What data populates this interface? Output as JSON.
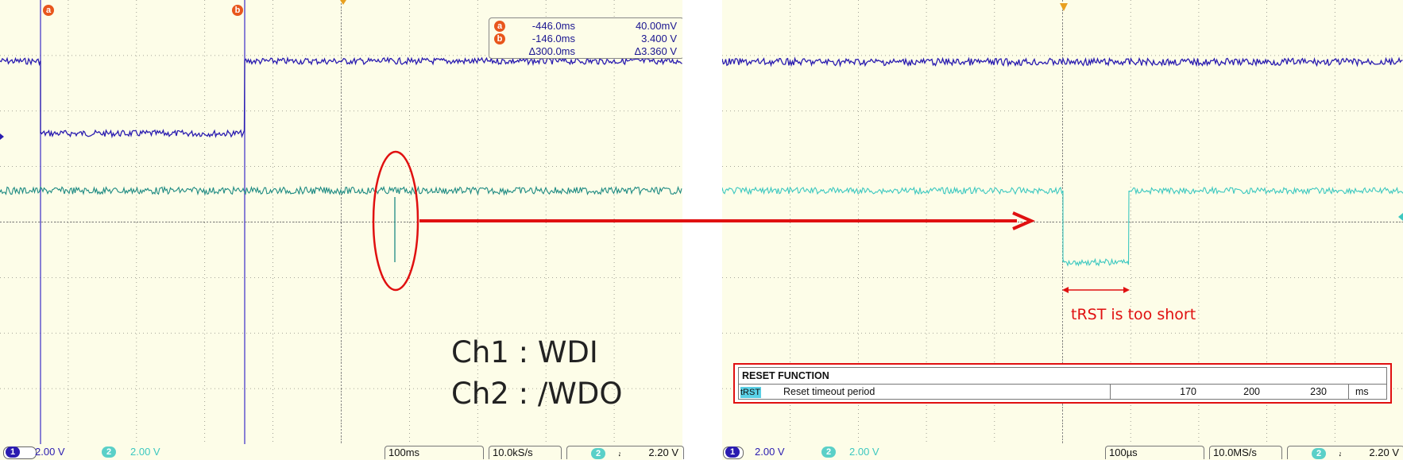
{
  "left_scope": {
    "cursor_labels": [
      "a",
      "b"
    ],
    "measurements": [
      {
        "marker": "a",
        "time": "-446.0ms",
        "value": "40.00mV"
      },
      {
        "marker": "b",
        "time": "-146.0ms",
        "value": "3.400 V"
      },
      {
        "marker": "",
        "time": "Δ300.0ms",
        "value": "Δ3.360 V"
      }
    ],
    "channel_notes": [
      "Ch1 : WDI",
      "Ch2 : /WDO"
    ],
    "status": {
      "ch1_num": "1",
      "ch1_scale": "2.00 V",
      "ch2_num": "2",
      "ch2_scale": "2.00 V",
      "timebase": "100ms",
      "sample_rate": "10.0kS/s",
      "trig_ch": "2",
      "trig_level": "2.20 V"
    }
  },
  "right_scope": {
    "annotation": "tRST is too short",
    "status": {
      "ch1_num": "1",
      "ch1_scale": "2.00 V",
      "ch2_num": "2",
      "ch2_scale": "2.00 V",
      "timebase": "100µs",
      "sample_rate": "10.0MS/s",
      "trig_ch": "2",
      "trig_level": "2.20 V"
    },
    "reset_table": {
      "header": "RESET FUNCTION",
      "symbol": "tRST",
      "parameter": "Reset timeout period",
      "min": "170",
      "typ": "200",
      "max": "230",
      "unit": "ms"
    }
  },
  "colors": {
    "ch1": "#2a1cb0",
    "ch2_left": "#1d8a82",
    "ch2_right": "#3cc8c0",
    "annotation_red": "#e01010",
    "screen_bg": "#fdfde8",
    "cursor_marker": "#e8561c"
  }
}
